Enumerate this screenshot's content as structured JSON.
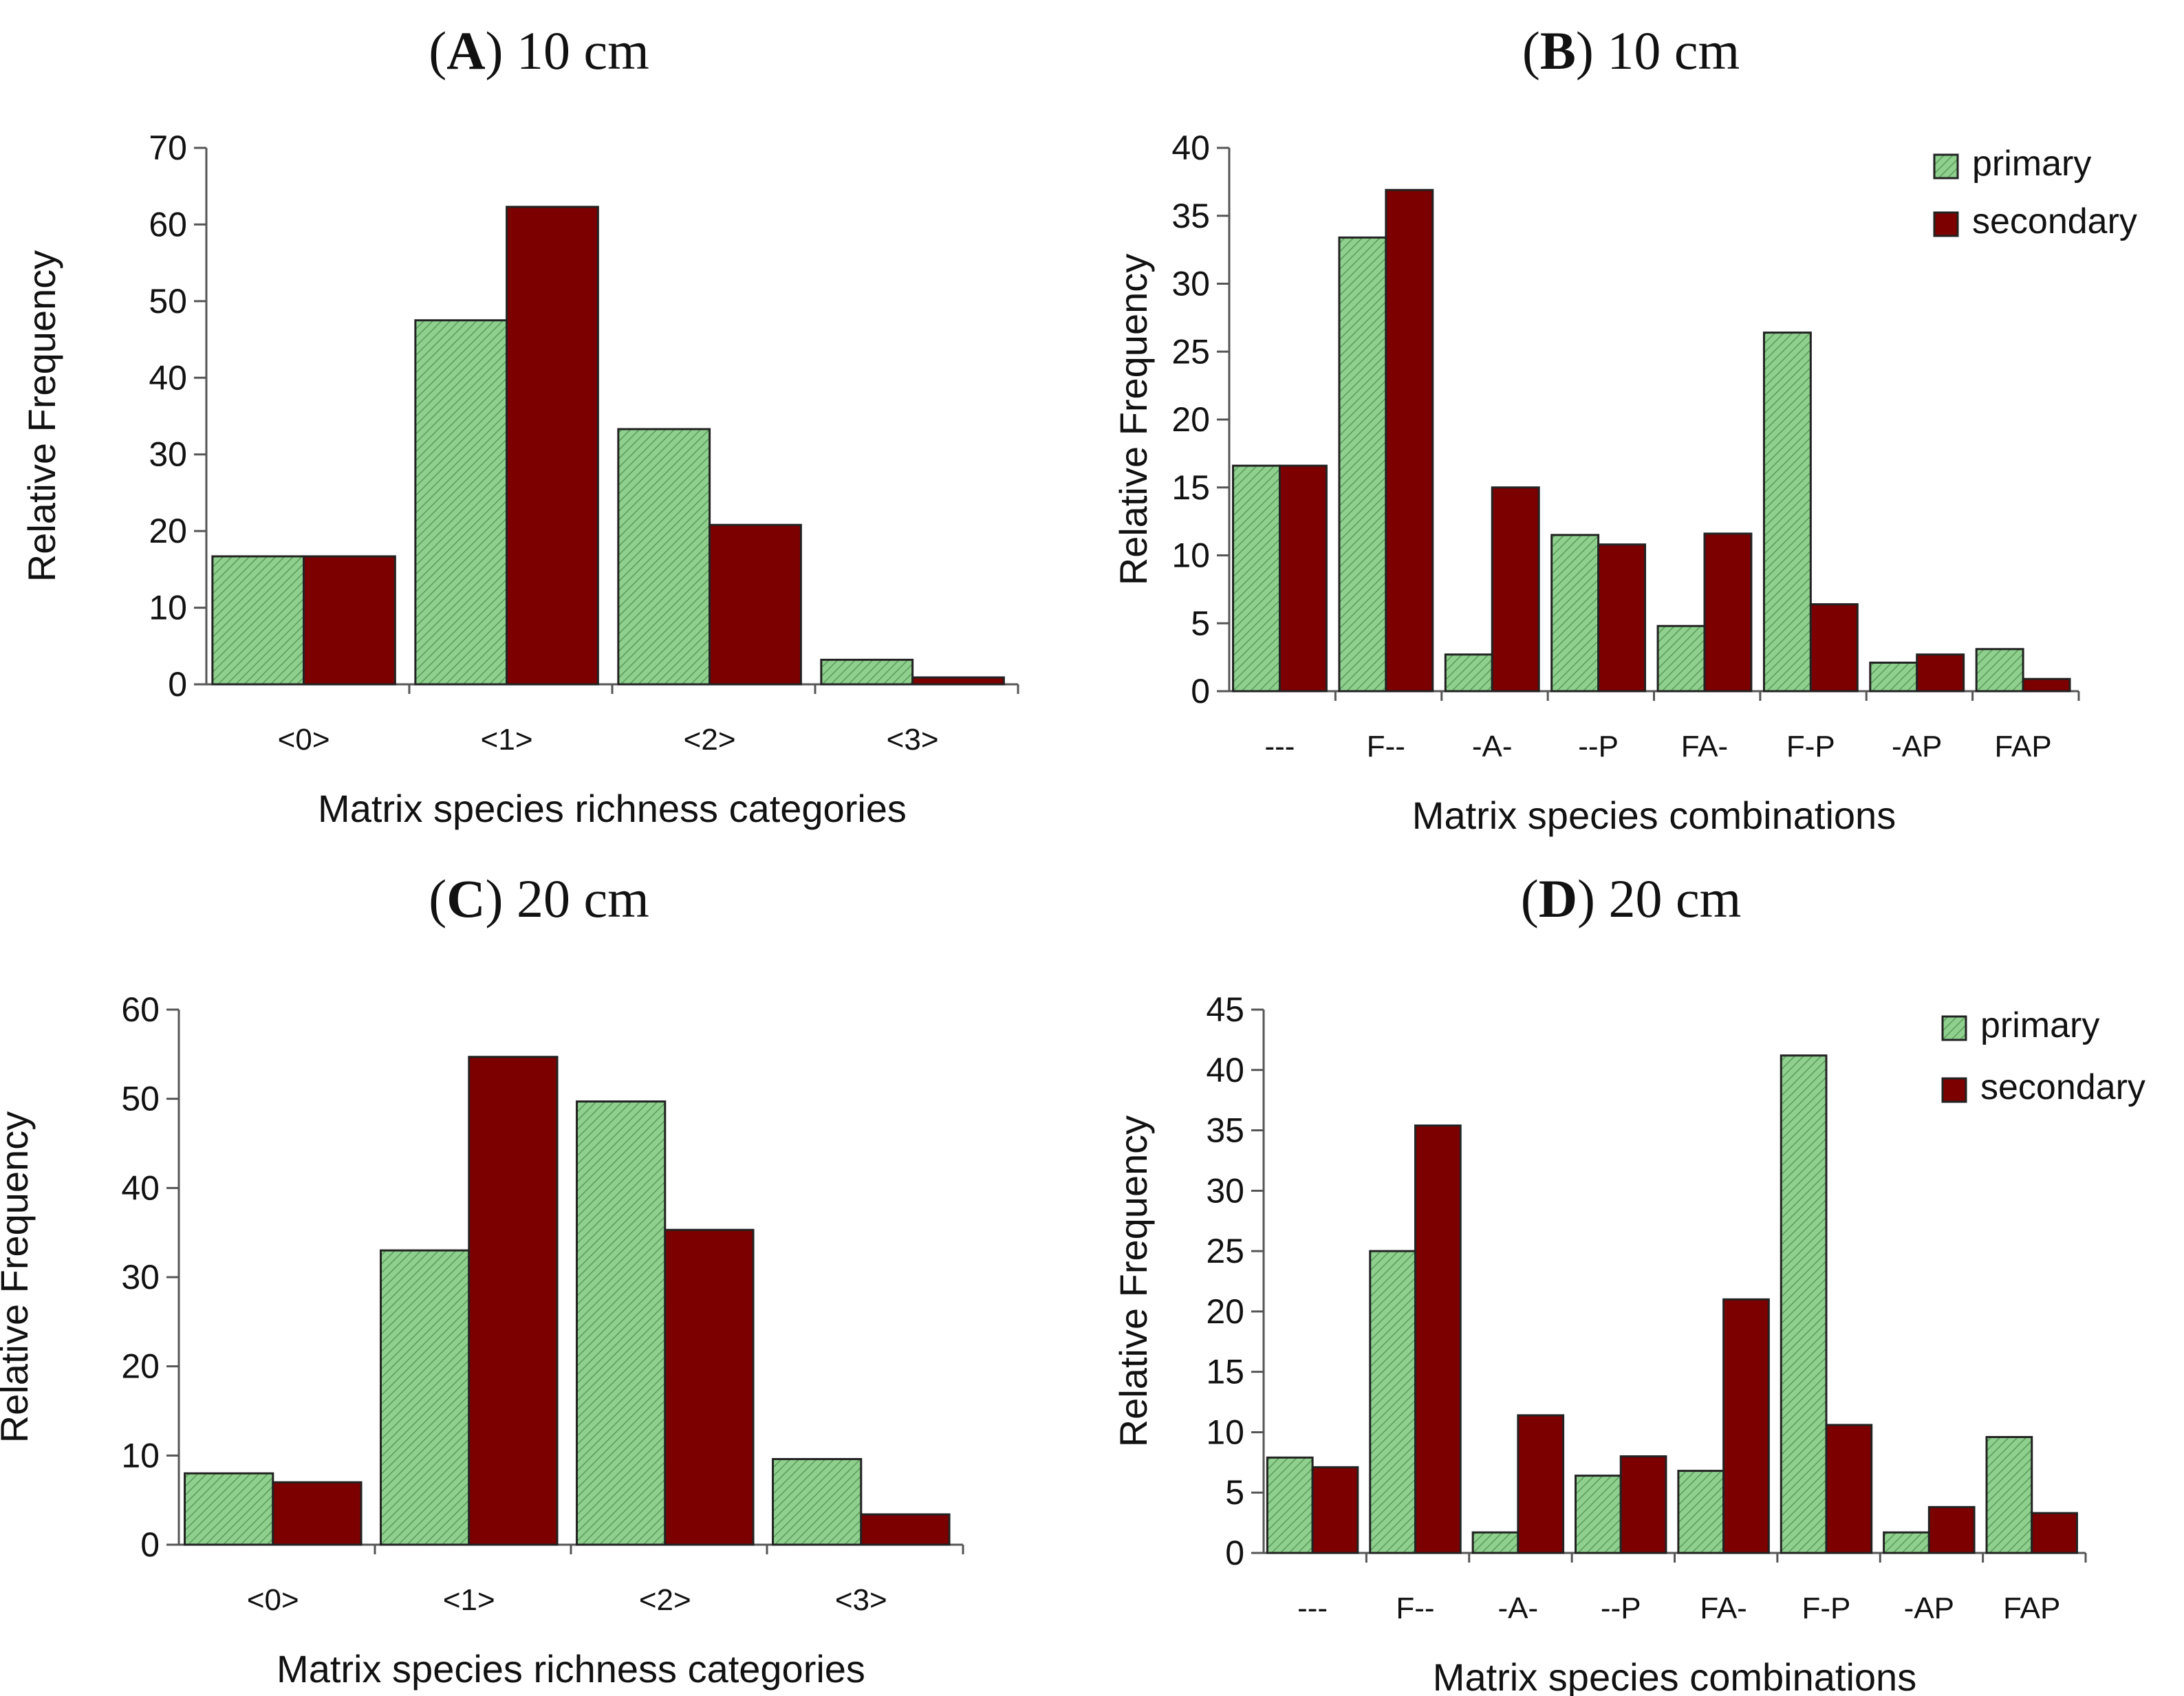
{
  "colors": {
    "primary_fill": "#8fd08f",
    "primary_hatch": "#5a9a5a",
    "secondary_fill": "#7d0000",
    "axis": "#555555"
  },
  "chart_data": [
    {
      "id": "A",
      "type": "bar",
      "title_letter": "A",
      "title_suffix": " 10 cm",
      "xlabel": "Matrix species richness categories",
      "ylabel": "Relative Frequency",
      "ylim": [
        0,
        70
      ],
      "yticks": [
        "0",
        "10",
        "20",
        "30",
        "40",
        "50",
        "60",
        "70"
      ],
      "categories": [
        "<0>",
        "<1>",
        "<2>",
        "<3>"
      ],
      "legend": null,
      "series": [
        {
          "name": "primary",
          "values": [
            16.7,
            47.5,
            33.3,
            3.2
          ]
        },
        {
          "name": "secondary",
          "values": [
            16.7,
            62.3,
            20.8,
            0.9
          ]
        }
      ]
    },
    {
      "id": "B",
      "type": "bar",
      "title_letter": "B",
      "title_suffix": " 10 cm",
      "xlabel": "Matrix species combinations",
      "ylabel": "Relative Frequency",
      "ylim": [
        0,
        40
      ],
      "yticks": [
        "0",
        "5",
        "10",
        "15",
        "20",
        "25",
        "30",
        "35",
        "40"
      ],
      "categories": [
        "---",
        "F--",
        "-A-",
        "--P",
        "FA-",
        "F-P",
        "-AP",
        "FAP"
      ],
      "legend": {
        "position": "top-right",
        "primary": "primary",
        "secondary": "secondary"
      },
      "series": [
        {
          "name": "primary",
          "values": [
            16.6,
            33.4,
            2.7,
            11.5,
            4.8,
            26.4,
            2.1,
            3.1
          ]
        },
        {
          "name": "secondary",
          "values": [
            16.6,
            36.9,
            15.0,
            10.8,
            11.6,
            6.4,
            2.7,
            0.9
          ]
        }
      ]
    },
    {
      "id": "C",
      "type": "bar",
      "title_letter": "C",
      "title_suffix": " 20 cm",
      "xlabel": "Matrix species richness categories",
      "ylabel": "Relative Frequency",
      "ylim": [
        0,
        60
      ],
      "yticks": [
        "0",
        "10",
        "20",
        "30",
        "40",
        "50",
        "60"
      ],
      "categories": [
        "<0>",
        "<1>",
        "<2>",
        "<3>"
      ],
      "legend": null,
      "series": [
        {
          "name": "primary",
          "values": [
            8.0,
            33.0,
            49.7,
            9.6
          ]
        },
        {
          "name": "secondary",
          "values": [
            7.0,
            54.7,
            35.3,
            3.4
          ]
        }
      ]
    },
    {
      "id": "D",
      "type": "bar",
      "title_letter": "D",
      "title_suffix": " 20 cm",
      "xlabel": "Matrix species combinations",
      "ylabel": "Relative Frequency",
      "ylim": [
        0,
        45
      ],
      "yticks": [
        "0",
        "5",
        "10",
        "15",
        "20",
        "25",
        "30",
        "35",
        "40",
        "45"
      ],
      "categories": [
        "---",
        "F--",
        "-A-",
        "--P",
        "FA-",
        "F-P",
        "-AP",
        "FAP"
      ],
      "legend": {
        "position": "top-right",
        "primary": "primary",
        "secondary": "secondary"
      },
      "series": [
        {
          "name": "primary",
          "values": [
            7.9,
            25.0,
            1.7,
            6.4,
            6.8,
            41.2,
            1.7,
            9.6
          ]
        },
        {
          "name": "secondary",
          "values": [
            7.1,
            35.4,
            11.4,
            8.0,
            21.0,
            10.6,
            3.8,
            3.3
          ]
        }
      ]
    }
  ]
}
